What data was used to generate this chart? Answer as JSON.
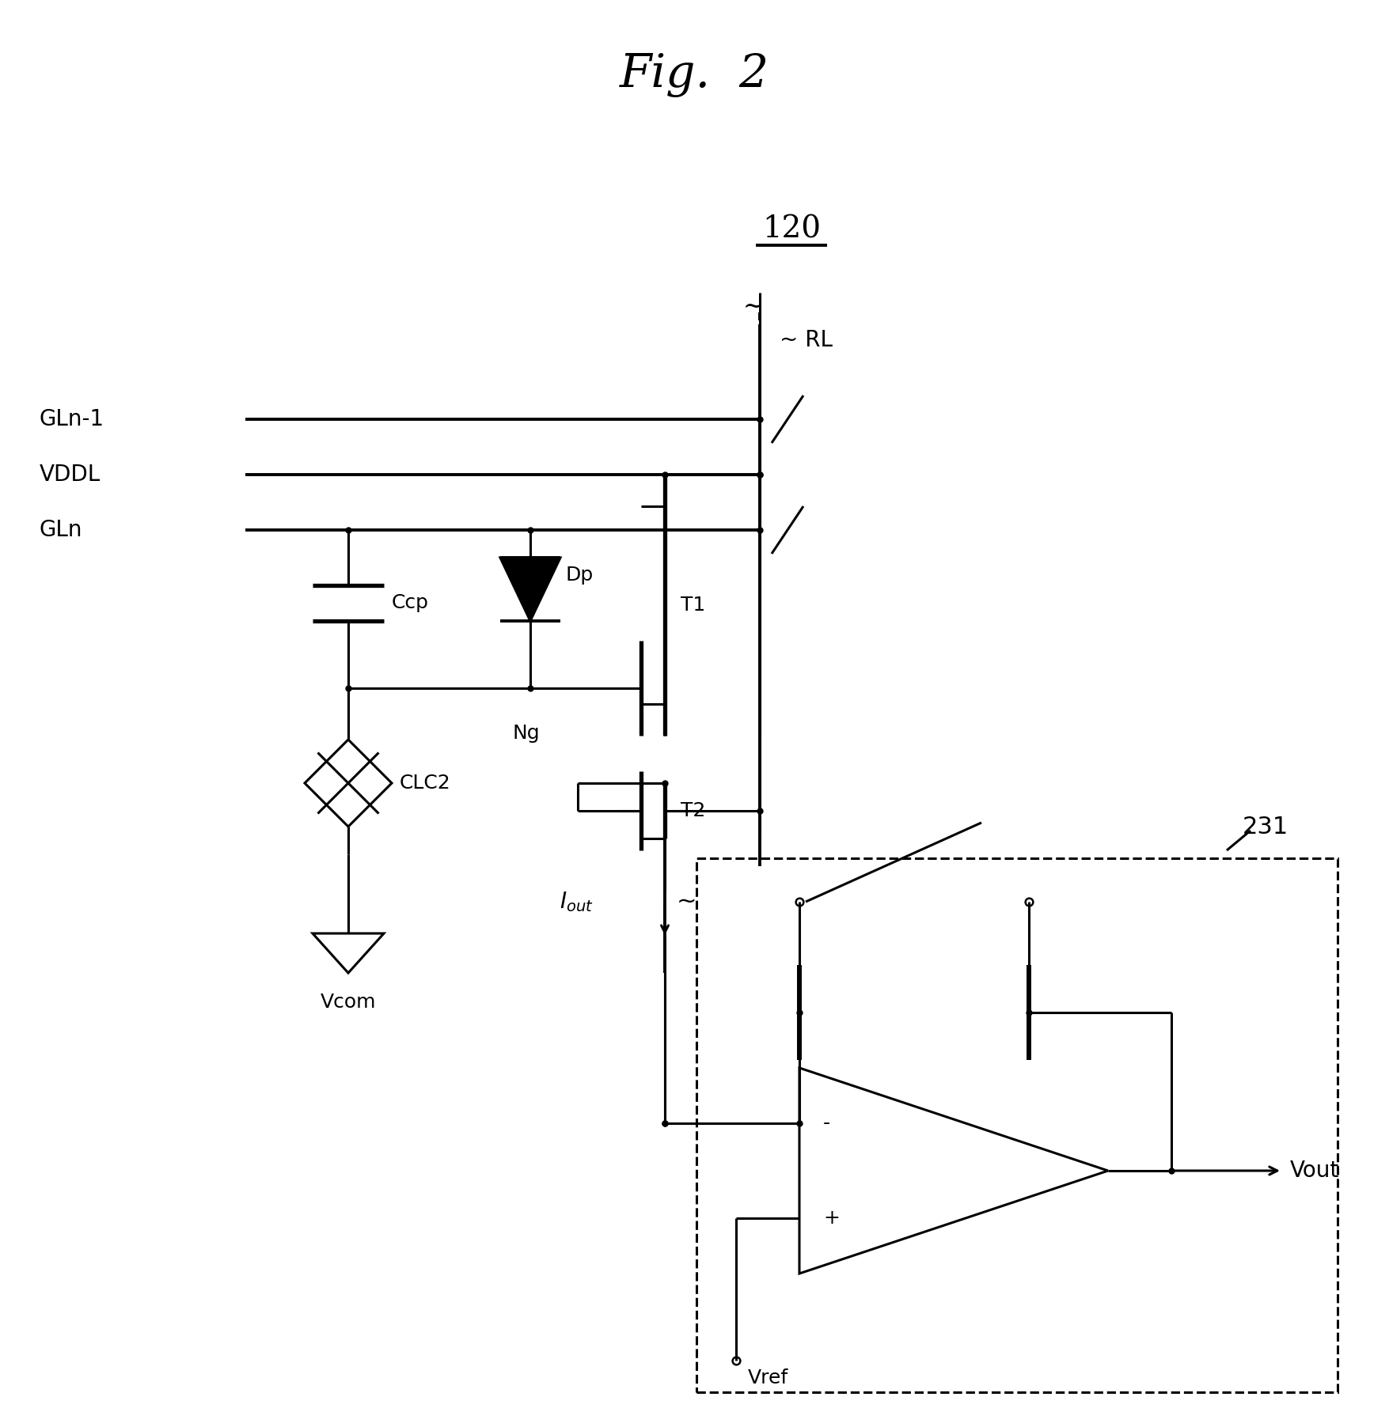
{
  "title": "Fig.  2",
  "label_120": "120",
  "label_231": "231",
  "background_color": "#ffffff",
  "line_color": "#000000",
  "figsize": [
    17.55,
    18.04
  ],
  "dpi": 100,
  "lw": 2.2,
  "lw_thick": 2.8
}
